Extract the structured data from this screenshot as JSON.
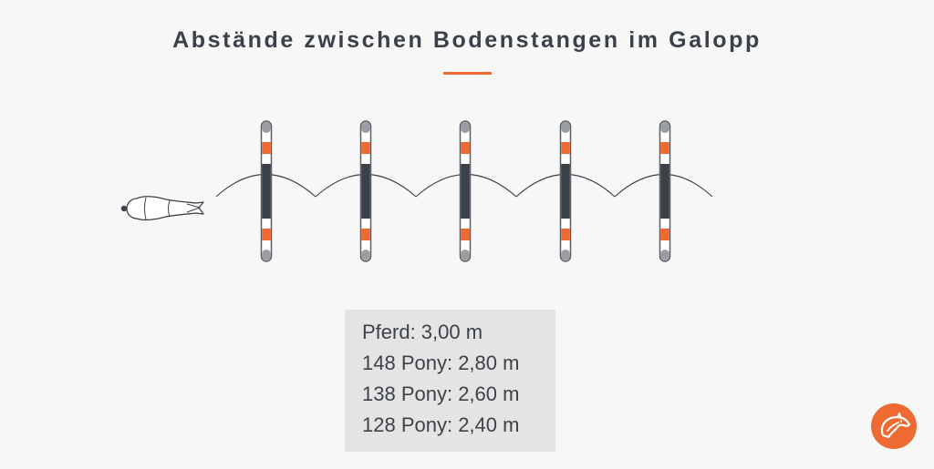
{
  "title": "Abstände zwischen Bodenstangen im Galopp",
  "distances": [
    "Pferd: 3,00 m",
    "148 Pony: 2,80 m",
    "138 Pony: 2,60 m",
    "128 Pony: 2,40 m"
  ],
  "pole_count": 5,
  "colors": {
    "accent": "#ef6a32",
    "pole_dark": "#3b4149",
    "pole_white": "#ffffff",
    "pole_outline": "#5c5f63",
    "text": "#3b4149",
    "box_bg": "#e4e4e4"
  },
  "icons": [
    "horse-top-view-icon",
    "horse-head-logo-icon"
  ]
}
